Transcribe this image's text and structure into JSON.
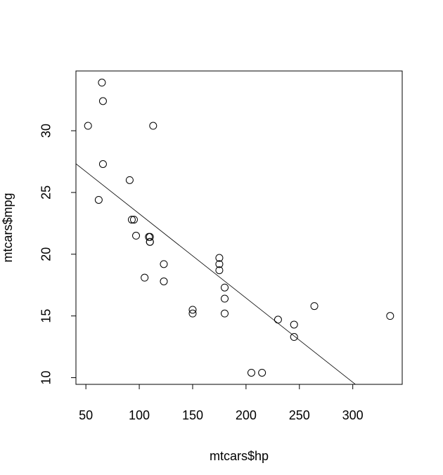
{
  "chart_data": {
    "type": "scatter",
    "x_label": "mtcars$hp",
    "y_label": "mtcars$mpg",
    "x": [
      110,
      110,
      93,
      110,
      175,
      105,
      245,
      62,
      95,
      123,
      123,
      180,
      180,
      180,
      205,
      215,
      230,
      66,
      52,
      65,
      97,
      150,
      150,
      245,
      175,
      66,
      91,
      113,
      264,
      175,
      335,
      109
    ],
    "values": [
      21.0,
      21.0,
      22.8,
      21.4,
      18.7,
      18.1,
      14.3,
      24.4,
      22.8,
      19.2,
      17.8,
      16.4,
      17.3,
      15.2,
      10.4,
      10.4,
      14.7,
      32.4,
      30.4,
      33.9,
      21.5,
      15.5,
      15.2,
      13.3,
      19.2,
      27.3,
      26.0,
      30.4,
      15.8,
      19.7,
      15.0,
      21.4
    ],
    "color": "#000000",
    "fit_line": {
      "intercept": 30.09886,
      "slope": -0.06823
    },
    "xlim": [
      40.68,
      346.32
    ],
    "ylim": [
      9.46,
      34.84
    ],
    "xticks": [
      50,
      100,
      150,
      200,
      250,
      300
    ],
    "yticks": [
      10,
      15,
      20,
      25,
      30
    ]
  }
}
